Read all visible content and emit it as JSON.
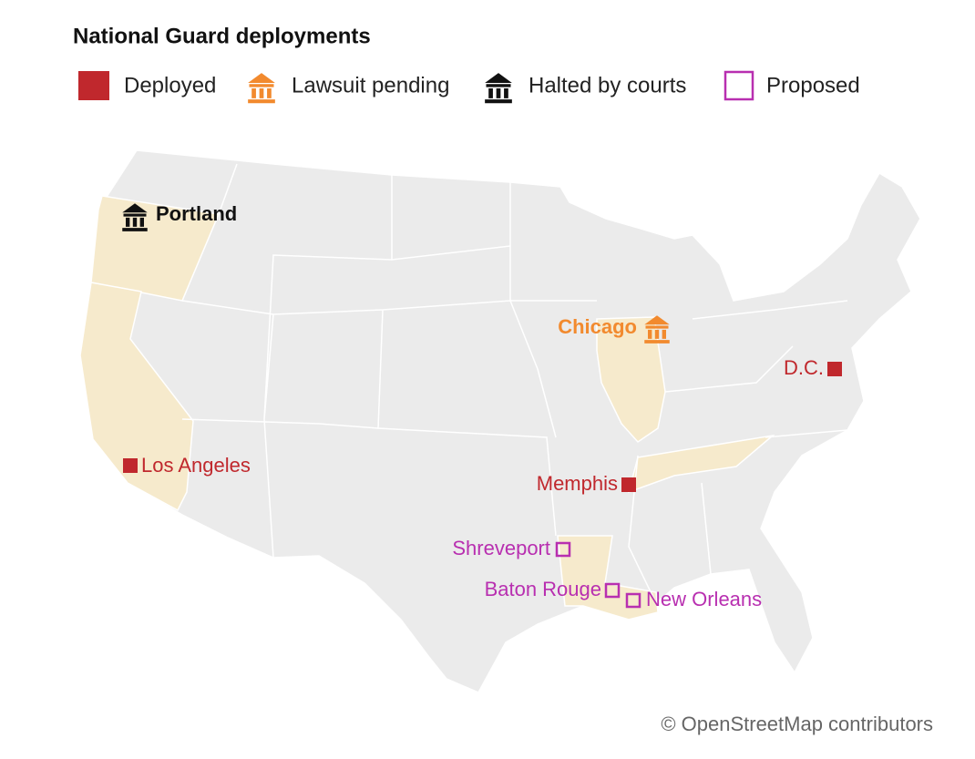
{
  "title": "National Guard deployments",
  "legend": [
    {
      "label": "Deployed",
      "color": "#c0282d",
      "cities": [
        "Los Angeles",
        "Memphis",
        "D.C."
      ]
    },
    {
      "label": "Lawsuit pending",
      "color": "#f28a2e",
      "cities": [
        "Chicago"
      ]
    },
    {
      "label": "Halted by courts",
      "color": "#111111",
      "cities": [
        "Portland"
      ]
    },
    {
      "label": "Proposed",
      "color": "#b82fb0",
      "cities": [
        "Shreveport",
        "Baton Rouge",
        "New Orleans"
      ]
    }
  ],
  "attribution": "© OpenStreetMap contributors"
}
